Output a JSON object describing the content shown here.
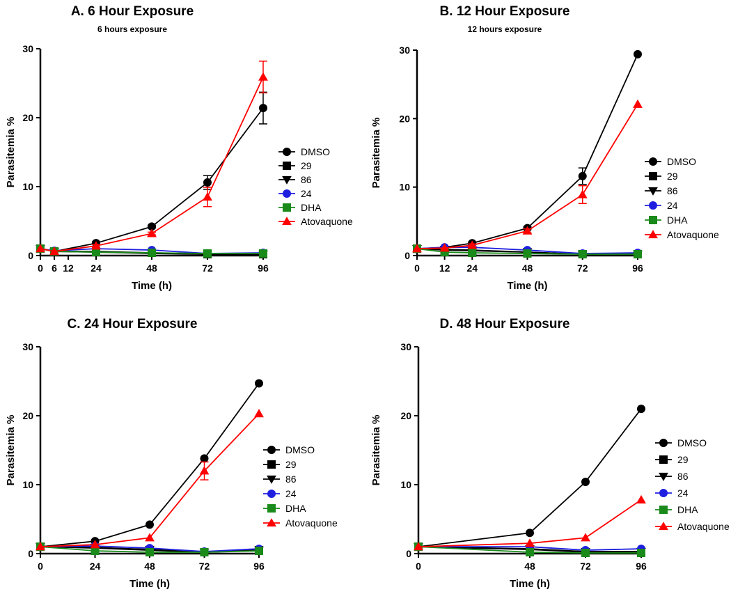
{
  "chart_data": [
    {
      "type": "line",
      "title": "A. 6 Hour Exposure",
      "subtitle": "6 hours exposure",
      "xlabel": "Time (h)",
      "ylabel": "Parasitemia %",
      "xlim": [
        0,
        96
      ],
      "ylim": [
        0,
        30
      ],
      "xticks": [
        0,
        6,
        12,
        24,
        48,
        72,
        96
      ],
      "xtick_labels": [
        "0",
        "6",
        "12",
        "24",
        "48",
        "72",
        "96"
      ],
      "yticks": [
        0,
        10,
        20,
        30
      ],
      "ytick_labels": [
        "0",
        "10",
        "20",
        "30"
      ],
      "series": [
        {
          "name": "DMSO",
          "color": "#000000",
          "marker": "circle",
          "x": [
            0,
            6,
            24,
            48,
            72,
            96
          ],
          "values": [
            1.0,
            0.6,
            1.8,
            4.2,
            10.6,
            21.4
          ],
          "errors": [
            0,
            0,
            0.2,
            0.2,
            1.0,
            2.3
          ]
        },
        {
          "name": "29",
          "color": "#000000",
          "marker": "square",
          "x": [
            0,
            6,
            24,
            48,
            72,
            96
          ],
          "values": [
            1.0,
            0.6,
            0.6,
            0.4,
            0.2,
            0.2
          ],
          "errors": [
            0,
            0,
            0,
            0,
            0,
            0
          ]
        },
        {
          "name": "86",
          "color": "#000000",
          "marker": "triangle-down",
          "x": [
            0,
            6,
            24,
            48,
            72,
            96
          ],
          "values": [
            1.0,
            0.6,
            0.5,
            0.3,
            0.2,
            0.2
          ],
          "errors": [
            0,
            0,
            0,
            0,
            0,
            0
          ]
        },
        {
          "name": "24",
          "color": "#1f1fe0",
          "marker": "circle",
          "x": [
            0,
            6,
            24,
            48,
            72,
            96
          ],
          "values": [
            1.0,
            0.7,
            1.0,
            0.8,
            0.3,
            0.4
          ],
          "errors": [
            0,
            0,
            0,
            0,
            0,
            0
          ]
        },
        {
          "name": "DHA",
          "color": "#1a8a1a",
          "marker": "square",
          "x": [
            0,
            6,
            24,
            48,
            72,
            96
          ],
          "values": [
            1.0,
            0.6,
            0.5,
            0.4,
            0.3,
            0.3
          ],
          "errors": [
            0,
            0,
            0,
            0,
            0,
            0
          ]
        },
        {
          "name": "Atovaquone",
          "color": "#ff0000",
          "marker": "triangle-up",
          "x": [
            0,
            6,
            24,
            48,
            72,
            96
          ],
          "values": [
            1.0,
            0.6,
            1.4,
            3.2,
            8.5,
            25.9
          ],
          "errors": [
            0,
            0,
            0.2,
            0.2,
            1.4,
            2.3
          ]
        }
      ]
    },
    {
      "type": "line",
      "title": "B. 12 Hour  Exposure",
      "subtitle": "12 hours exposure",
      "xlabel": "Time (h)",
      "ylabel": "Parasitemia %",
      "xlim": [
        0,
        96
      ],
      "ylim": [
        0,
        30
      ],
      "xticks": [
        0,
        12,
        24,
        48,
        72,
        96
      ],
      "xtick_labels": [
        "0",
        "12",
        "24",
        "48",
        "72",
        "96"
      ],
      "yticks": [
        0,
        10,
        20,
        30
      ],
      "ytick_labels": [
        "0",
        "10",
        "20",
        "30"
      ],
      "series": [
        {
          "name": "DMSO",
          "color": "#000000",
          "marker": "circle",
          "x": [
            0,
            12,
            24,
            48,
            72,
            96
          ],
          "values": [
            1.0,
            1.2,
            1.8,
            4.0,
            11.6,
            29.4
          ],
          "errors": [
            0,
            0,
            0.2,
            0.2,
            1.2,
            0
          ]
        },
        {
          "name": "29",
          "color": "#000000",
          "marker": "square",
          "x": [
            0,
            12,
            24,
            48,
            72,
            96
          ],
          "values": [
            1.0,
            0.8,
            0.7,
            0.5,
            0.2,
            0.2
          ],
          "errors": [
            0,
            0,
            0,
            0,
            0,
            0
          ]
        },
        {
          "name": "86",
          "color": "#000000",
          "marker": "triangle-down",
          "x": [
            0,
            12,
            24,
            48,
            72,
            96
          ],
          "values": [
            1.0,
            0.9,
            0.8,
            0.5,
            0.2,
            0.2
          ],
          "errors": [
            0,
            0,
            0,
            0,
            0,
            0
          ]
        },
        {
          "name": "24",
          "color": "#1f1fe0",
          "marker": "circle",
          "x": [
            0,
            12,
            24,
            48,
            72,
            96
          ],
          "values": [
            1.0,
            1.2,
            1.2,
            0.8,
            0.3,
            0.4
          ],
          "errors": [
            0,
            0,
            0,
            0,
            0,
            0
          ]
        },
        {
          "name": "DHA",
          "color": "#1a8a1a",
          "marker": "square",
          "x": [
            0,
            12,
            24,
            48,
            72,
            96
          ],
          "values": [
            1.0,
            0.5,
            0.4,
            0.3,
            0.2,
            0.2
          ],
          "errors": [
            0,
            0,
            0,
            0,
            0,
            0
          ]
        },
        {
          "name": "Atovaquone",
          "color": "#ff0000",
          "marker": "triangle-up",
          "x": [
            0,
            12,
            24,
            48,
            72,
            96
          ],
          "values": [
            1.0,
            1.1,
            1.5,
            3.6,
            8.9,
            22.1
          ],
          "errors": [
            0,
            0,
            0.2,
            0.3,
            1.3,
            0
          ]
        }
      ]
    },
    {
      "type": "line",
      "title": "C. 24 Hour  Exposure",
      "subtitle": "",
      "xlabel": "Time (h)",
      "ylabel": "Parasitemia %",
      "xlim": [
        0,
        96
      ],
      "ylim": [
        0,
        30
      ],
      "xticks": [
        0,
        24,
        48,
        72,
        96
      ],
      "xtick_labels": [
        "0",
        "24",
        "48",
        "72",
        "96"
      ],
      "yticks": [
        0,
        10,
        20,
        30
      ],
      "ytick_labels": [
        "0",
        "10",
        "20",
        "30"
      ],
      "series": [
        {
          "name": "DMSO",
          "color": "#000000",
          "marker": "circle",
          "x": [
            0,
            24,
            48,
            72,
            96
          ],
          "values": [
            1.0,
            1.8,
            4.2,
            13.8,
            24.7
          ],
          "errors": [
            0,
            0,
            0,
            0,
            0
          ]
        },
        {
          "name": "29",
          "color": "#000000",
          "marker": "square",
          "x": [
            0,
            24,
            48,
            72,
            96
          ],
          "values": [
            1.0,
            0.8,
            0.5,
            0.2,
            0.5
          ],
          "errors": [
            0,
            0,
            0,
            0,
            0
          ]
        },
        {
          "name": "86",
          "color": "#000000",
          "marker": "triangle-down",
          "x": [
            0,
            24,
            48,
            72,
            96
          ],
          "values": [
            1.0,
            0.9,
            0.6,
            0.2,
            0.5
          ],
          "errors": [
            0,
            0,
            0,
            0,
            0
          ]
        },
        {
          "name": "24",
          "color": "#1f1fe0",
          "marker": "circle",
          "x": [
            0,
            24,
            48,
            72,
            96
          ],
          "values": [
            1.0,
            1.1,
            0.8,
            0.3,
            0.7
          ],
          "errors": [
            0,
            0,
            0,
            0,
            0
          ]
        },
        {
          "name": "DHA",
          "color": "#1a8a1a",
          "marker": "square",
          "x": [
            0,
            24,
            48,
            72,
            96
          ],
          "values": [
            1.0,
            0.4,
            0.2,
            0.2,
            0.4
          ],
          "errors": [
            0,
            0,
            0,
            0,
            0
          ]
        },
        {
          "name": "Atovaquone",
          "color": "#ff0000",
          "marker": "triangle-up",
          "x": [
            0,
            24,
            48,
            72,
            96
          ],
          "values": [
            1.0,
            1.3,
            2.3,
            12.0,
            20.3
          ],
          "errors": [
            0,
            0,
            0,
            1.3,
            0
          ]
        }
      ]
    },
    {
      "type": "line",
      "title": "D. 48 Hour Exposure",
      "subtitle": "",
      "xlabel": "Time (h)",
      "ylabel": "Parasitemia %",
      "xlim": [
        0,
        96
      ],
      "ylim": [
        0,
        30
      ],
      "xticks": [
        0,
        48,
        72,
        96
      ],
      "xtick_labels": [
        "0",
        "48",
        "72",
        "96"
      ],
      "yticks": [
        0,
        10,
        20,
        30
      ],
      "ytick_labels": [
        "0",
        "10",
        "20",
        "30"
      ],
      "series": [
        {
          "name": "DMSO",
          "color": "#000000",
          "marker": "circle",
          "x": [
            0,
            48,
            72,
            96
          ],
          "values": [
            1.0,
            3.0,
            10.4,
            21.0
          ],
          "errors": [
            0,
            0,
            0,
            0
          ]
        },
        {
          "name": "29",
          "color": "#000000",
          "marker": "square",
          "x": [
            0,
            48,
            72,
            96
          ],
          "values": [
            1.0,
            0.6,
            0.2,
            0.2
          ],
          "errors": [
            0,
            0,
            0,
            0
          ]
        },
        {
          "name": "86",
          "color": "#000000",
          "marker": "triangle-down",
          "x": [
            0,
            48,
            72,
            96
          ],
          "values": [
            1.0,
            0.7,
            0.3,
            0.3
          ],
          "errors": [
            0,
            0,
            0,
            0
          ]
        },
        {
          "name": "24",
          "color": "#1f1fe0",
          "marker": "circle",
          "x": [
            0,
            48,
            72,
            96
          ],
          "values": [
            1.0,
            1.0,
            0.5,
            0.7
          ],
          "errors": [
            0,
            0,
            0,
            0
          ]
        },
        {
          "name": "DHA",
          "color": "#1a8a1a",
          "marker": "square",
          "x": [
            0,
            48,
            72,
            96
          ],
          "values": [
            1.0,
            0.2,
            0.1,
            0.1
          ],
          "errors": [
            0,
            0,
            0,
            0
          ]
        },
        {
          "name": "Atovaquone",
          "color": "#ff0000",
          "marker": "triangle-up",
          "x": [
            0,
            48,
            72,
            96
          ],
          "values": [
            1.0,
            1.5,
            2.3,
            7.8
          ],
          "errors": [
            0,
            0,
            0,
            0
          ]
        }
      ]
    }
  ]
}
